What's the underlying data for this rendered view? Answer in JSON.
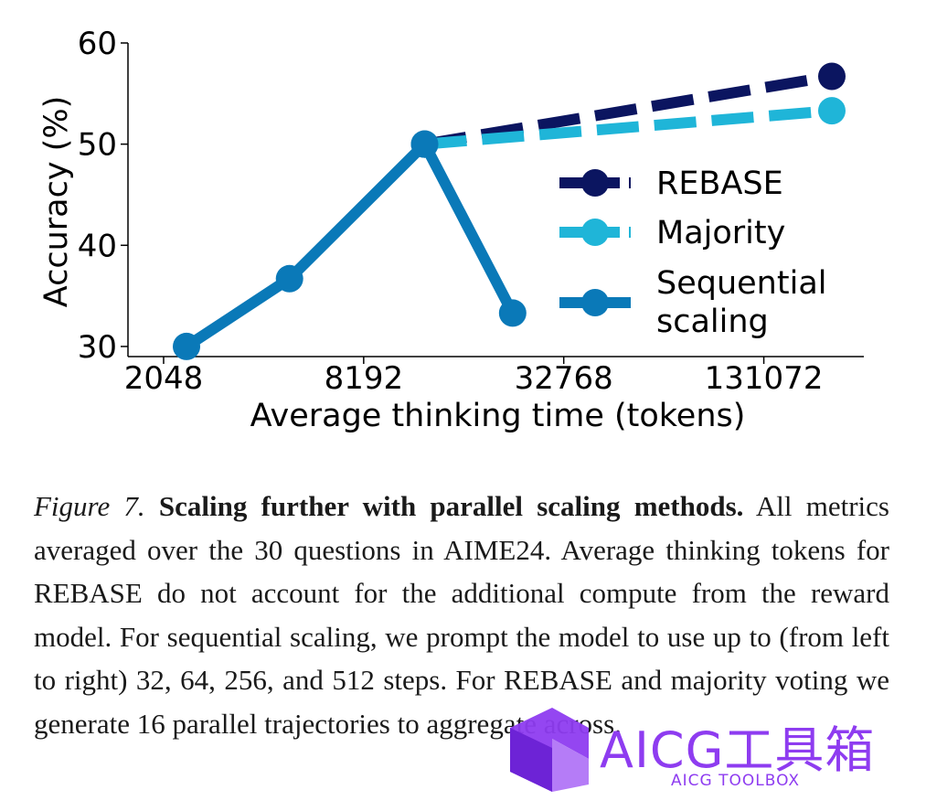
{
  "chart_data": {
    "type": "line",
    "xlabel": "Average thinking time (tokens)",
    "ylabel": "Accuracy (%)",
    "x_scale": "log2",
    "xlim": [
      1600,
      262144
    ],
    "ylim": [
      29,
      60
    ],
    "x_ticks": [
      2048,
      8192,
      32768,
      131072
    ],
    "y_ticks": [
      30,
      40,
      50,
      60
    ],
    "legend_position": "right",
    "series": [
      {
        "name": "REBASE",
        "color": "#0b1560",
        "style": "dashed",
        "points": [
          [
            12500,
            50.0
          ],
          [
            210000,
            56.7
          ]
        ]
      },
      {
        "name": "Majority",
        "color": "#1fb5d8",
        "style": "dashed",
        "points": [
          [
            12500,
            50.0
          ],
          [
            210000,
            53.3
          ]
        ]
      },
      {
        "name": "Sequential scaling",
        "name_lines": [
          "Sequential",
          "scaling"
        ],
        "color": "#0a79b8",
        "style": "mixed",
        "points": [
          [
            2400,
            30.0
          ],
          [
            4900,
            36.7
          ],
          [
            12500,
            50.0
          ],
          [
            23000,
            33.3
          ]
        ],
        "solid_segments": 3
      }
    ]
  },
  "caption": {
    "label": "Figure 7.",
    "title": "Scaling further with parallel scaling methods.",
    "text": "All metrics averaged over the 30 questions in AIME24. Average thinking tokens for REBASE do not account for the additional compute from the reward model. For sequential scaling, we prompt the model to use up to (from left to right) 32, 64, 256, and 512 steps. For REBASE and majority voting we generate 16 parallel trajectories to aggregate across."
  },
  "watermark": {
    "title": "AICG工具箱",
    "subtitle": "AICG TOOLBOX",
    "color": "#8e3cf0"
  }
}
